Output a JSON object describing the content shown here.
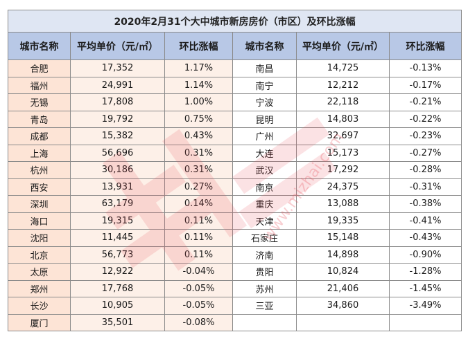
{
  "table": {
    "title": "2020年2月31个大中城市新房房价（市区）及环比涨幅",
    "headers": [
      "城市名称",
      "平均单价（元/㎡）",
      "环比涨幅",
      "城市名称",
      "平均单价（元/㎡）",
      "环比涨幅"
    ],
    "rows": [
      {
        "city_a": "合肥",
        "price_a": "17,352",
        "change_a": "1.17%",
        "city_b": "南昌",
        "price_b": "14,725",
        "change_b": "-0.13%"
      },
      {
        "city_a": "福州",
        "price_a": "24,991",
        "change_a": "1.14%",
        "city_b": "南宁",
        "price_b": "12,212",
        "change_b": "-0.17%"
      },
      {
        "city_a": "无锡",
        "price_a": "17,808",
        "change_a": "1.00%",
        "city_b": "宁波",
        "price_b": "22,118",
        "change_b": "-0.21%"
      },
      {
        "city_a": "青岛",
        "price_a": "19,792",
        "change_a": "0.75%",
        "city_b": "昆明",
        "price_b": "14,803",
        "change_b": "-0.22%"
      },
      {
        "city_a": "成都",
        "price_a": "15,382",
        "change_a": "0.43%",
        "city_b": "广州",
        "price_b": "32,697",
        "change_b": "-0.23%"
      },
      {
        "city_a": "上海",
        "price_a": "56,696",
        "change_a": "0.31%",
        "city_b": "大连",
        "price_b": "15,173",
        "change_b": "-0.27%"
      },
      {
        "city_a": "杭州",
        "price_a": "30,186",
        "change_a": "0.31%",
        "city_b": "武汉",
        "price_b": "17,292",
        "change_b": "-0.28%"
      },
      {
        "city_a": "西安",
        "price_a": "13,931",
        "change_a": "0.27%",
        "city_b": "南京",
        "price_b": "24,375",
        "change_b": "-0.31%"
      },
      {
        "city_a": "深圳",
        "price_a": "63,179",
        "change_a": "0.14%",
        "city_b": "重庆",
        "price_b": "13,088",
        "change_b": "-0.38%"
      },
      {
        "city_a": "海口",
        "price_a": "19,315",
        "change_a": "0.11%",
        "city_b": "天津",
        "price_b": "19,335",
        "change_b": "-0.41%"
      },
      {
        "city_a": "沈阳",
        "price_a": "11,445",
        "change_a": "0.11%",
        "city_b": "石家庄",
        "price_b": "15,148",
        "change_b": "-0.43%"
      },
      {
        "city_a": "北京",
        "price_a": "56,773",
        "change_a": "0.11%",
        "city_b": "济南",
        "price_b": "14,898",
        "change_b": "-0.90%"
      },
      {
        "city_a": "太原",
        "price_a": "12,922",
        "change_a": "-0.04%",
        "city_b": "贵阳",
        "price_b": "10,824",
        "change_b": "-1.28%"
      },
      {
        "city_a": "郑州",
        "price_a": "17,768",
        "change_a": "-0.05%",
        "city_b": "苏州",
        "price_b": "21,406",
        "change_b": "-1.45%"
      },
      {
        "city_a": "长沙",
        "price_a": "10,905",
        "change_a": "-0.05%",
        "city_b": "三亚",
        "price_b": "34,860",
        "change_b": "-3.49%"
      },
      {
        "city_a": "厦门",
        "price_a": "35,501",
        "change_a": "-0.08%",
        "city_b": "",
        "price_b": "",
        "change_b": ""
      }
    ]
  },
  "watermark": {
    "text": "www.mizhai.com",
    "color": "#e8505b"
  }
}
